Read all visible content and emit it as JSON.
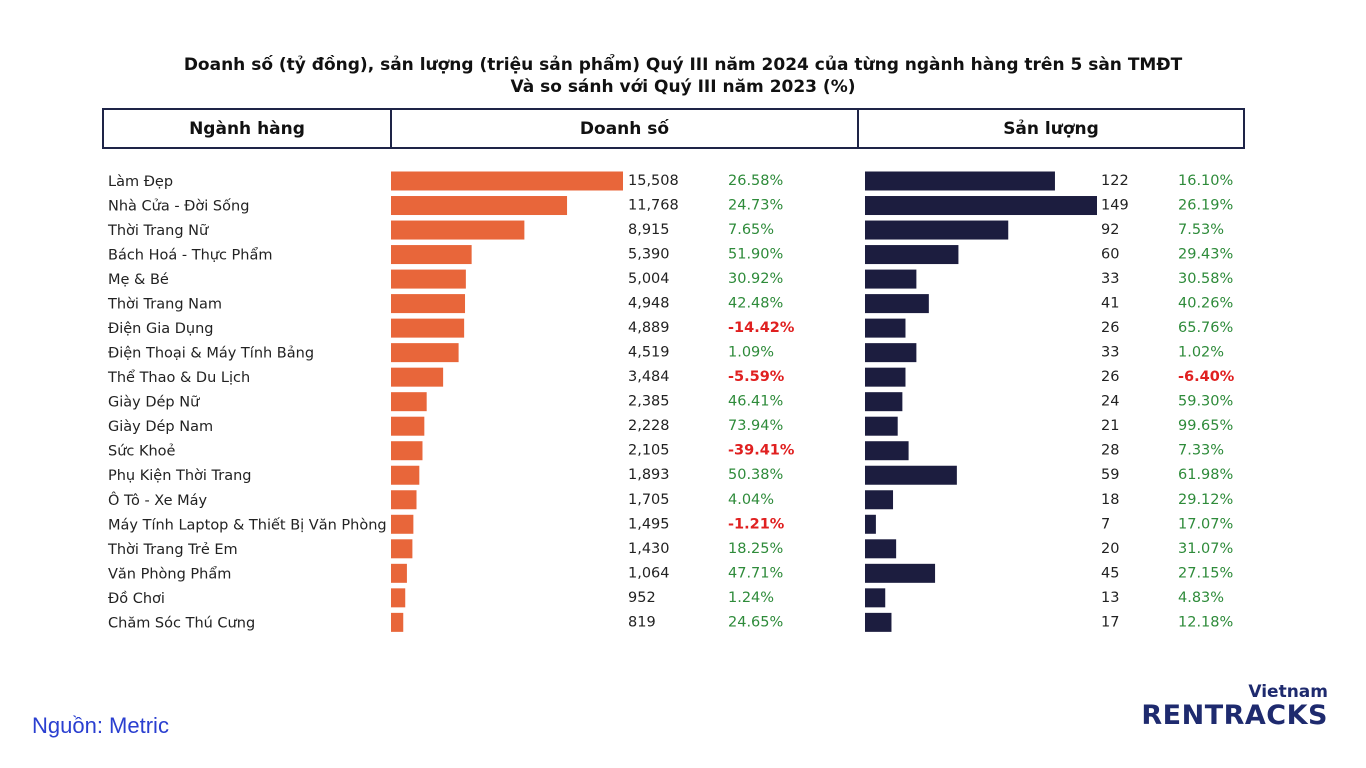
{
  "title_line1": "Doanh số (tỷ đồng), sản lượng (triệu sản phẩm) Quý III năm 2024 của từng ngành hàng trên 5 sàn TMĐT",
  "title_line2": "Và so sánh với Quý III năm 2023 (%)",
  "headers": {
    "category": "Ngành hàng",
    "revenue": "Doanh số",
    "volume": "Sản lượng"
  },
  "source": "Nguồn: Metric",
  "logo": {
    "top": "Vietnam",
    "main": "RENTRACKS"
  },
  "colors": {
    "revenue_bar": "#e8663a",
    "volume_bar": "#1c1d3f",
    "positive": "#2e8b3a",
    "negative": "#e02020",
    "header_border": "#1e2447"
  },
  "chart_data": {
    "type": "bar",
    "orientation": "horizontal",
    "categories": [
      "Làm Đẹp",
      "Nhà Cửa - Đời Sống",
      "Thời Trang Nữ",
      "Bách Hoá - Thực Phẩm",
      "Mẹ & Bé",
      "Thời Trang Nam",
      "Điện Gia Dụng",
      "Điện Thoại & Máy Tính Bảng",
      "Thể Thao & Du Lịch",
      "Giày Dép Nữ",
      "Giày Dép Nam",
      "Sức Khoẻ",
      "Phụ Kiện Thời Trang",
      "Ô Tô - Xe Máy",
      "Máy Tính Laptop & Thiết Bị Văn Phòng",
      "Thời Trang Trẻ Em",
      "Văn Phòng Phẩm",
      "Đồ Chơi",
      "Chăm Sóc Thú Cưng"
    ],
    "series": [
      {
        "name": "Doanh số",
        "values": [
          15508,
          11768,
          8915,
          5390,
          5004,
          4948,
          4889,
          4519,
          3484,
          2385,
          2228,
          2105,
          1893,
          1705,
          1495,
          1430,
          1064,
          952,
          819
        ],
        "labels": [
          "15,508",
          "11,768",
          "8,915",
          "5,390",
          "5,004",
          "4,948",
          "4,889",
          "4,519",
          "3,484",
          "2,385",
          "2,228",
          "2,105",
          "1,893",
          "1,705",
          "1,495",
          "1,430",
          "1,064",
          "952",
          "819"
        ],
        "change": [
          "26.58%",
          "24.73%",
          "7.65%",
          "51.90%",
          "30.92%",
          "42.48%",
          "-14.42%",
          "1.09%",
          "-5.59%",
          "46.41%",
          "73.94%",
          "-39.41%",
          "50.38%",
          "4.04%",
          "-1.21%",
          "18.25%",
          "47.71%",
          "1.24%",
          "24.65%"
        ]
      },
      {
        "name": "Sản lượng",
        "values": [
          122,
          149,
          92,
          60,
          33,
          41,
          26,
          33,
          26,
          24,
          21,
          28,
          59,
          18,
          7,
          20,
          45,
          13,
          17
        ],
        "labels": [
          "122",
          "149",
          "92",
          "60",
          "33",
          "41",
          "26",
          "33",
          "26",
          "24",
          "21",
          "28",
          "59",
          "18",
          "7",
          "20",
          "45",
          "13",
          "17"
        ],
        "change": [
          "16.10%",
          "26.19%",
          "7.53%",
          "29.43%",
          "30.58%",
          "40.26%",
          "65.76%",
          "1.02%",
          "-6.40%",
          "59.30%",
          "99.65%",
          "7.33%",
          "61.98%",
          "29.12%",
          "17.07%",
          "31.07%",
          "27.15%",
          "4.83%",
          "12.18%"
        ]
      }
    ]
  }
}
